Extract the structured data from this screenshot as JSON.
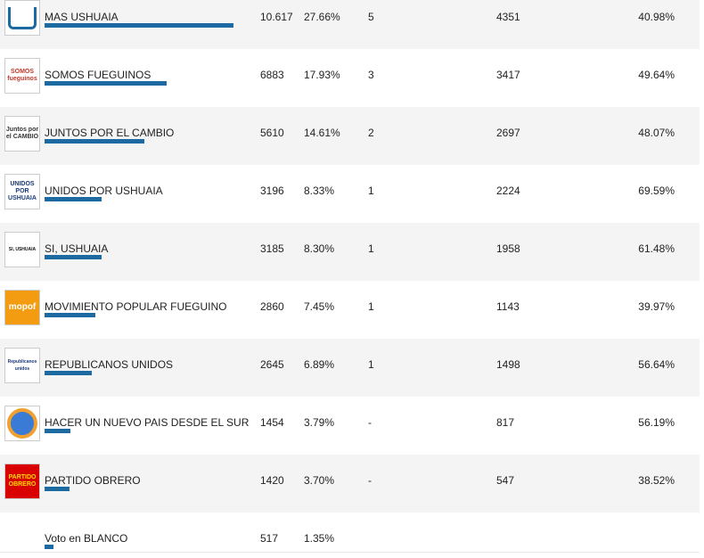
{
  "table": {
    "rows": [
      {
        "logo": null,
        "name": "MAS USHUAIA",
        "votes": "10.617",
        "share": "27.66%",
        "seats": "5",
        "count": "4351",
        "rate": "40.98%"
      },
      {
        "logo": "SOMOS fueguinos",
        "name": "SOMOS FUEGUINOS",
        "votes": "6883",
        "share": "17.93%",
        "seats": "3",
        "count": "3417",
        "rate": "49.64%"
      },
      {
        "logo": "Juntos por el CAMBIO",
        "name": "JUNTOS POR EL CAMBIO",
        "votes": "5610",
        "share": "14.61%",
        "seats": "2",
        "count": "2697",
        "rate": "48.07%"
      },
      {
        "logo": "UNIDOS POR USHUAIA",
        "name": "UNIDOS POR USHUAIA",
        "votes": "3196",
        "share": "8.33%",
        "seats": "1",
        "count": "2224",
        "rate": "69.59%"
      },
      {
        "logo": "SI, USHUAIA",
        "name": "SI, USHUAIA",
        "votes": "3185",
        "share": "8.30%",
        "seats": "1",
        "count": "1958",
        "rate": "61.48%"
      },
      {
        "logo": "mopof",
        "name": "MOVIMIENTO POPULAR FUEGUINO",
        "votes": "2860",
        "share": "7.45%",
        "seats": "1",
        "count": "1143",
        "rate": "39.97%"
      },
      {
        "logo": "Republicanos unidos",
        "name": "REPUBLICANOS UNIDOS",
        "votes": "2645",
        "share": "6.89%",
        "seats": "1",
        "count": "1498",
        "rate": "56.64%"
      },
      {
        "logo": null,
        "name": "HACER UN NUEVO PAIS DESDE EL SUR",
        "votes": "1454",
        "share": "3.79%",
        "seats": "-",
        "count": "817",
        "rate": "56.19%"
      },
      {
        "logo": "PARTIDO OBRERO",
        "name": "PARTIDO OBRERO",
        "votes": "1420",
        "share": "3.70%",
        "seats": "-",
        "count": "547",
        "rate": "38.52%"
      },
      {
        "logo": null,
        "name": "Voto en BLANCO",
        "votes": "517",
        "share": "1.35%",
        "seats": null,
        "count": null,
        "rate": null
      }
    ]
  }
}
